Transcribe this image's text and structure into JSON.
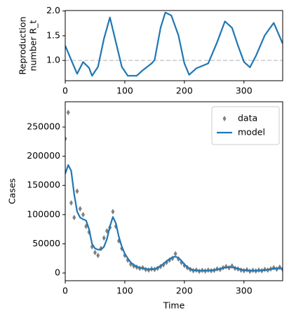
{
  "chart_data": [
    {
      "type": "line",
      "ylabel": [
        "Reproduction",
        "number R_t"
      ],
      "x": [
        0,
        10,
        20,
        30,
        40,
        45,
        55,
        65,
        75,
        85,
        95,
        105,
        120,
        130,
        145,
        150,
        160,
        168,
        178,
        190,
        200,
        208,
        220,
        240,
        255,
        268,
        280,
        290,
        300,
        310,
        320,
        335,
        350,
        365
      ],
      "series": [
        {
          "color": "#1f77b4",
          "values": [
            1.3,
            1.01,
            0.73,
            0.97,
            0.85,
            0.69,
            0.87,
            1.44,
            1.87,
            1.37,
            0.87,
            0.69,
            0.69,
            0.8,
            0.94,
            1.01,
            1.66,
            1.97,
            1.91,
            1.51,
            0.94,
            0.71,
            0.84,
            0.94,
            1.37,
            1.79,
            1.66,
            1.3,
            0.97,
            0.86,
            1.09,
            1.51,
            1.76,
            1.34
          ]
        }
      ],
      "hline": 1,
      "hline_color": "#cccccc",
      "xlim": [
        0,
        365
      ],
      "xticks": [
        0,
        100,
        200,
        300
      ],
      "ylim": [
        0.59,
        2.01
      ],
      "yticks": [
        {
          "value": 1,
          "label": "1.0"
        },
        {
          "value": 1.5,
          "label": "1.5"
        },
        {
          "value": 2,
          "label": "2.0"
        }
      ]
    },
    {
      "type": "line",
      "xlabel": "Time",
      "ylabel": "Cases",
      "x": [
        0,
        5,
        10,
        15,
        20,
        25,
        30,
        35,
        40,
        45,
        50,
        55,
        60,
        65,
        70,
        75,
        80,
        85,
        90,
        95,
        100,
        105,
        110,
        115,
        120,
        125,
        130,
        135,
        140,
        145,
        150,
        155,
        160,
        165,
        170,
        175,
        180,
        185,
        190,
        195,
        200,
        205,
        210,
        215,
        220,
        225,
        230,
        235,
        240,
        245,
        250,
        255,
        260,
        265,
        270,
        275,
        280,
        285,
        290,
        295,
        300,
        305,
        310,
        315,
        320,
        325,
        330,
        335,
        340,
        345,
        350,
        355,
        360,
        365
      ],
      "series": [
        {
          "name": "data",
          "type": "scatter",
          "color": "#808080",
          "values": [
            230000,
            275000,
            120000,
            95000,
            140000,
            110000,
            100000,
            80000,
            70000,
            45000,
            35000,
            30000,
            42000,
            60000,
            72000,
            78000,
            105000,
            80000,
            55000,
            42000,
            30000,
            22000,
            15000,
            12000,
            10000,
            8000,
            9000,
            6000,
            5000,
            7000,
            6000,
            8000,
            11000,
            14000,
            18000,
            22000,
            25000,
            33000,
            24000,
            18000,
            13000,
            9000,
            6000,
            4000,
            5000,
            3000,
            4500,
            3500,
            5000,
            4000,
            4500,
            7000,
            6000,
            9000,
            11000,
            9000,
            12000,
            8000,
            7000,
            5000,
            4000,
            5500,
            3000,
            4500,
            3500,
            5000,
            4000,
            6000,
            5000,
            7000,
            9000,
            6500,
            10000,
            6000
          ]
        },
        {
          "name": "model",
          "type": "line",
          "color": "#1f77b4",
          "values": [
            170000,
            185000,
            175000,
            135000,
            105000,
            95000,
            92000,
            90000,
            75000,
            50000,
            42000,
            40000,
            40000,
            45000,
            58000,
            80000,
            96000,
            85000,
            62000,
            45000,
            33000,
            25000,
            18000,
            14000,
            11000,
            9000,
            8000,
            7000,
            6500,
            6500,
            7000,
            9000,
            12000,
            16000,
            20000,
            24000,
            27000,
            28000,
            26000,
            21000,
            15000,
            10000,
            7000,
            5000,
            4500,
            4000,
            4000,
            4000,
            4000,
            4500,
            5000,
            6000,
            7000,
            8500,
            9500,
            10000,
            10000,
            9000,
            7500,
            6000,
            5000,
            4500,
            4000,
            4000,
            4000,
            4000,
            4500,
            5000,
            5500,
            6500,
            7500,
            8000,
            8000,
            7500
          ]
        }
      ],
      "legend": "upper right",
      "xlim": [
        0,
        365
      ],
      "xticks": [
        0,
        100,
        200,
        300
      ],
      "ylim": [
        -13200,
        293300
      ],
      "yticks": [
        0,
        50000,
        100000,
        150000,
        200000,
        250000
      ]
    }
  ]
}
